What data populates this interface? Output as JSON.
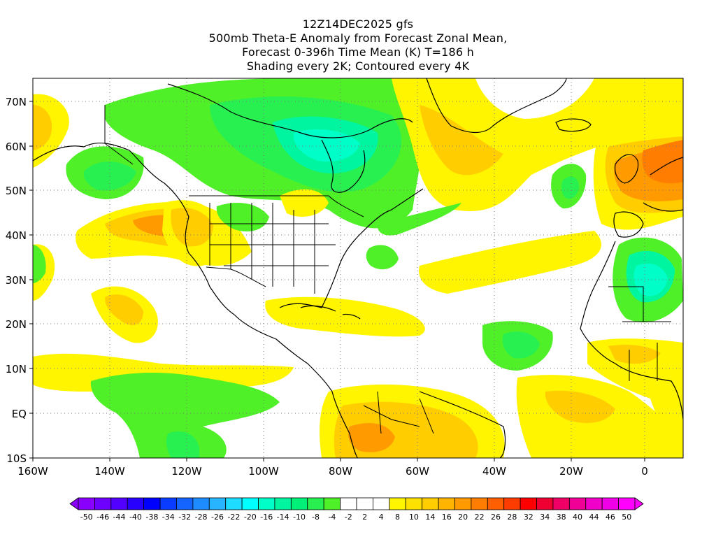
{
  "title_lines": [
    "12Z14DEC2025 gfs",
    "500mb Theta-E Anomaly from Forecast Zonal Mean,",
    "Forecast 0-396h Time Mean (K) T=186 h",
    "Shading every 2K; Contoured every 4K"
  ],
  "axes": {
    "lon_labels": [
      "160W",
      "140W",
      "120W",
      "100W",
      "80W",
      "60W",
      "40W",
      "20W",
      "0"
    ],
    "lat_labels": [
      "70N",
      "60N",
      "50N",
      "40N",
      "30N",
      "20N",
      "10N",
      "EQ",
      "10S"
    ]
  },
  "colorbar": {
    "labels": [
      "-50",
      "-46",
      "-44",
      "-40",
      "-38",
      "-34",
      "-32",
      "-28",
      "-26",
      "-22",
      "-20",
      "-16",
      "-14",
      "-10",
      "-8",
      "-4",
      "-2",
      "2",
      "4",
      "8",
      "10",
      "14",
      "16",
      "20",
      "22",
      "26",
      "28",
      "32",
      "34",
      "38",
      "40",
      "44",
      "46",
      "50"
    ],
    "colors": [
      "#8a00ff",
      "#6e00ff",
      "#5200ff",
      "#2800ff",
      "#0000ff",
      "#0a3cff",
      "#1464ff",
      "#1e8cff",
      "#28b4ff",
      "#1edcff",
      "#00ffff",
      "#00ffc8",
      "#00f5a0",
      "#00f078",
      "#28f050",
      "#50f028",
      "#ffffff",
      "#ffffff",
      "#ffffff",
      "#fff500",
      "#ffe100",
      "#ffcd00",
      "#ffb400",
      "#ff9b00",
      "#ff7d00",
      "#ff5f00",
      "#ff3c00",
      "#ff0000",
      "#f00032",
      "#f00064",
      "#f00096",
      "#f000c8",
      "#f000e6",
      "#ff00ff"
    ]
  },
  "map_colors": {
    "yellow": "#fff500",
    "gold": "#ffcd00",
    "orange": "#ff9b00",
    "dorange": "#ff7d00",
    "green": "#50f028",
    "lgreen": "#28f050",
    "mint": "#00f078",
    "aqua": "#00f5a0",
    "cyan": "#00ffc8"
  }
}
